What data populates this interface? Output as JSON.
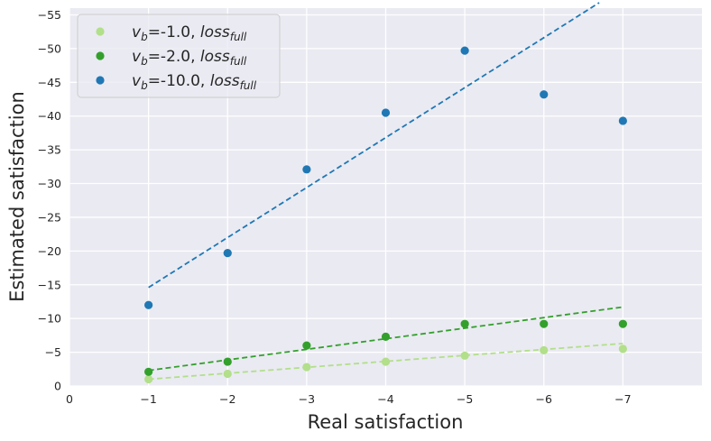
{
  "chart_data": {
    "type": "scatter",
    "xlabel": "Real satisfaction",
    "ylabel": "Estimated satisfaction",
    "xlim": [
      0,
      -8
    ],
    "ylim": [
      0,
      -56
    ],
    "xticks": [
      0,
      -1,
      -2,
      -3,
      -4,
      -5,
      -6,
      -7
    ],
    "xtick_labels": [
      "0",
      "−1",
      "−2",
      "−3",
      "−4",
      "−5",
      "−6",
      "−7"
    ],
    "yticks": [
      0,
      -5,
      -10,
      -15,
      -20,
      -25,
      -30,
      -35,
      -40,
      -45,
      -50,
      -55
    ],
    "ytick_labels": [
      "0",
      "−5",
      "−10",
      "−15",
      "−20",
      "−25",
      "−30",
      "−35",
      "−40",
      "−45",
      "−50",
      "−55"
    ],
    "grid": true,
    "legend_position": "top-left",
    "series": [
      {
        "name": "v_b=-1.0, loss_full",
        "legend_main": "v",
        "legend_sub": "b",
        "legend_mid": "=-1.0, ",
        "legend_loss": "loss",
        "legend_loss_sub": "full",
        "color": "#b2df8a",
        "x": [
          -1,
          -2,
          -3,
          -4,
          -5,
          -6,
          -7
        ],
        "y": [
          -1.0,
          -1.8,
          -2.8,
          -3.6,
          -4.5,
          -5.3,
          -5.5
        ],
        "fit": {
          "x": [
            -1,
            -7
          ],
          "y": [
            -1.0,
            -6.3
          ]
        }
      },
      {
        "name": "v_b=-2.0, loss_full",
        "legend_main": "v",
        "legend_sub": "b",
        "legend_mid": "=-2.0, ",
        "legend_loss": "loss",
        "legend_loss_sub": "full",
        "color": "#33a02c",
        "x": [
          -1,
          -2,
          -3,
          -4,
          -5,
          -6,
          -7
        ],
        "y": [
          -2.1,
          -3.6,
          -6.0,
          -7.3,
          -9.2,
          -9.2,
          -9.2
        ],
        "fit": {
          "x": [
            -1,
            -7
          ],
          "y": [
            -2.3,
            -11.7
          ]
        }
      },
      {
        "name": "v_b=-10.0, loss_full",
        "legend_main": "v",
        "legend_sub": "b",
        "legend_mid": "=-10.0, ",
        "legend_loss": "loss",
        "legend_loss_sub": "full",
        "color": "#1f78b4",
        "x": [
          -1,
          -2,
          -3,
          -4,
          -5,
          -6,
          -7
        ],
        "y": [
          -12.0,
          -19.7,
          -32.1,
          -40.5,
          -49.7,
          -43.2,
          -39.3
        ],
        "fit": {
          "x": [
            -1,
            -6.7
          ],
          "y": [
            -14.6,
            -56.8
          ]
        }
      }
    ]
  }
}
